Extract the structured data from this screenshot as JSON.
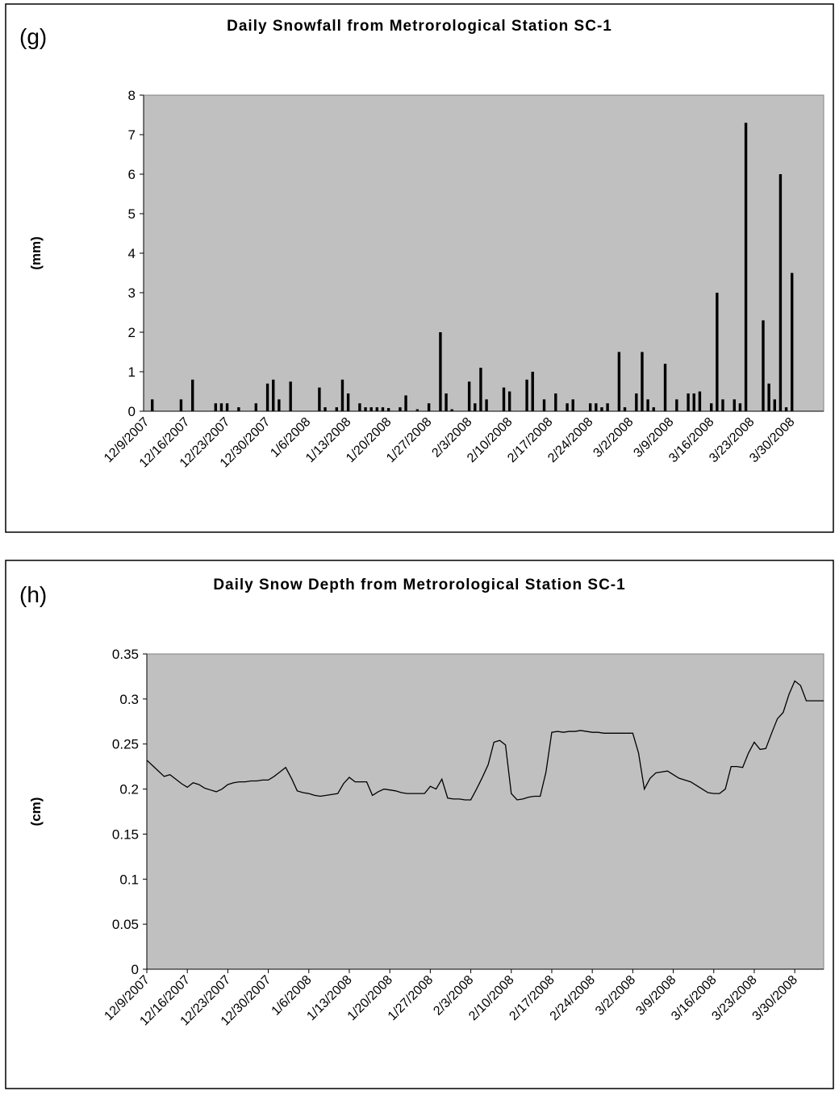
{
  "chart_data": [
    {
      "type": "bar",
      "panel_label": "(g)",
      "title": "Daily Snowfall from Metrorological Station SC-1",
      "ylabel": "(mm)",
      "categories": [
        "12/9/2007",
        null,
        null,
        null,
        null,
        null,
        null,
        "12/16/2007",
        null,
        null,
        null,
        null,
        null,
        null,
        "12/23/2007",
        null,
        null,
        null,
        null,
        null,
        null,
        "12/30/2007",
        null,
        null,
        null,
        null,
        null,
        null,
        "1/6/2008",
        null,
        null,
        null,
        null,
        null,
        null,
        "1/13/2008",
        null,
        null,
        null,
        null,
        null,
        null,
        "1/20/2008",
        null,
        null,
        null,
        null,
        null,
        null,
        "1/27/2008",
        null,
        null,
        null,
        null,
        null,
        null,
        "2/3/2008",
        null,
        null,
        null,
        null,
        null,
        null,
        "2/10/2008",
        null,
        null,
        null,
        null,
        null,
        null,
        "2/17/2008",
        null,
        null,
        null,
        null,
        null,
        null,
        "2/24/2008",
        null,
        null,
        null,
        null,
        null,
        null,
        "3/2/2008",
        null,
        null,
        null,
        null,
        null,
        null,
        "3/9/2008",
        null,
        null,
        null,
        null,
        null,
        null,
        "3/16/2008",
        null,
        null,
        null,
        null,
        null,
        null,
        "3/23/2008",
        null,
        null,
        null,
        null,
        null,
        null,
        "3/30/2008",
        null,
        null,
        null,
        null,
        null
      ],
      "values": [
        0,
        0.3,
        0,
        0,
        0,
        0,
        0.3,
        0,
        0.8,
        0,
        0,
        0,
        0.2,
        0.2,
        0.2,
        0,
        0.1,
        0,
        0,
        0.2,
        0,
        0.7,
        0.8,
        0.3,
        0,
        0.75,
        0,
        0,
        0,
        0,
        0.6,
        0.1,
        0,
        0.1,
        0.8,
        0.45,
        0,
        0.2,
        0.1,
        0.1,
        0.1,
        0.1,
        0.08,
        0,
        0.1,
        0.4,
        0,
        0.05,
        0,
        0.2,
        0,
        2,
        0.45,
        0.05,
        0,
        0,
        0.75,
        0.2,
        1.1,
        0.3,
        0,
        0,
        0.6,
        0.5,
        0,
        0,
        0.8,
        1,
        0,
        0.3,
        0,
        0.45,
        0,
        0.2,
        0.3,
        0,
        0,
        0.2,
        0.2,
        0.1,
        0.2,
        0,
        1.5,
        0.1,
        0,
        0.45,
        1.5,
        0.3,
        0.1,
        0,
        1.2,
        0,
        0.3,
        0,
        0.45,
        0.45,
        0.5,
        0,
        0.2,
        3,
        0.3,
        0,
        0.3,
        0.2,
        7.3,
        0,
        0,
        2.3,
        0.7,
        0.3,
        6,
        0.1,
        3.5,
        0,
        0,
        0,
        0,
        0
      ],
      "color": "#000000",
      "background": "#c0c0c0",
      "ylim": [
        0,
        8
      ],
      "yticks": [
        0,
        1,
        2,
        3,
        4,
        5,
        6,
        7,
        8
      ]
    },
    {
      "type": "line",
      "panel_label": "(h)",
      "title": "Daily Snow Depth from Metrorological Station SC-1",
      "ylabel": "(cm)",
      "categories": [
        "12/9/2007",
        null,
        null,
        null,
        null,
        null,
        null,
        "12/16/2007",
        null,
        null,
        null,
        null,
        null,
        null,
        "12/23/2007",
        null,
        null,
        null,
        null,
        null,
        null,
        "12/30/2007",
        null,
        null,
        null,
        null,
        null,
        null,
        "1/6/2008",
        null,
        null,
        null,
        null,
        null,
        null,
        "1/13/2008",
        null,
        null,
        null,
        null,
        null,
        null,
        "1/20/2008",
        null,
        null,
        null,
        null,
        null,
        null,
        "1/27/2008",
        null,
        null,
        null,
        null,
        null,
        null,
        "2/3/2008",
        null,
        null,
        null,
        null,
        null,
        null,
        "2/10/2008",
        null,
        null,
        null,
        null,
        null,
        null,
        "2/17/2008",
        null,
        null,
        null,
        null,
        null,
        null,
        "2/24/2008",
        null,
        null,
        null,
        null,
        null,
        null,
        "3/2/2008",
        null,
        null,
        null,
        null,
        null,
        null,
        "3/9/2008",
        null,
        null,
        null,
        null,
        null,
        null,
        "3/16/2008",
        null,
        null,
        null,
        null,
        null,
        null,
        "3/23/2008",
        null,
        null,
        null,
        null,
        null,
        null,
        "3/30/2008",
        null,
        null,
        null,
        null,
        null
      ],
      "values": [
        0.232,
        0.226,
        0.22,
        0.214,
        0.216,
        0.211,
        0.206,
        0.202,
        0.207,
        0.205,
        0.201,
        0.199,
        0.197,
        0.2,
        0.205,
        0.207,
        0.208,
        0.208,
        0.209,
        0.209,
        0.21,
        0.21,
        0.214,
        0.219,
        0.224,
        0.212,
        0.198,
        0.196,
        0.195,
        0.193,
        0.192,
        0.193,
        0.194,
        0.195,
        0.206,
        0.213,
        0.208,
        0.208,
        0.208,
        0.193,
        0.197,
        0.2,
        0.199,
        0.198,
        0.196,
        0.195,
        0.195,
        0.195,
        0.195,
        0.203,
        0.2,
        0.211,
        0.19,
        0.189,
        0.189,
        0.188,
        0.188,
        0.2,
        0.213,
        0.227,
        0.252,
        0.254,
        0.249,
        0.195,
        0.188,
        0.189,
        0.191,
        0.192,
        0.192,
        0.219,
        0.263,
        0.264,
        0.263,
        0.264,
        0.264,
        0.265,
        0.264,
        0.263,
        0.263,
        0.262,
        0.262,
        0.262,
        0.262,
        0.262,
        0.262,
        0.24,
        0.2,
        0.212,
        0.218,
        0.219,
        0.22,
        0.216,
        0.212,
        0.21,
        0.208,
        0.204,
        0.2,
        0.196,
        0.195,
        0.195,
        0.2,
        0.225,
        0.225,
        0.224,
        0.24,
        0.252,
        0.244,
        0.245,
        0.262,
        0.278,
        0.285,
        0.305,
        0.32,
        0.315,
        0.298,
        0.298,
        0.298,
        0.298
      ],
      "color": "#000000",
      "background": "#c0c0c0",
      "ylim": [
        0,
        0.35
      ],
      "yticks": [
        0,
        0.05,
        0.1,
        0.15,
        0.2,
        0.25,
        0.3,
        0.35
      ]
    }
  ]
}
